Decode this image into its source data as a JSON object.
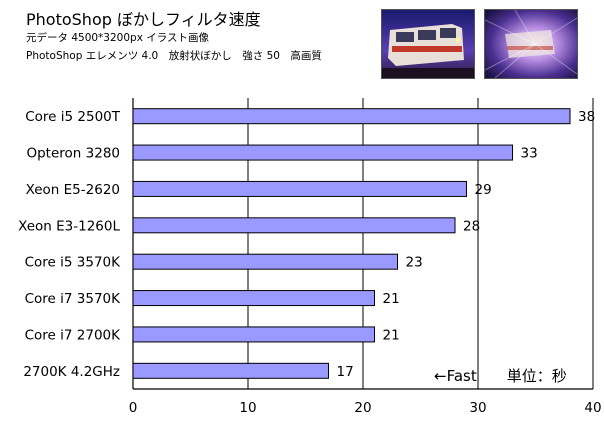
{
  "header": {
    "title": "PhotoShop ぼかしフィルタ速度",
    "subtitle1": "元データ 4500*3200px イラスト画像",
    "subtitle2": "PhotoShop エレメンツ 4.0　放射状ぼかし　強さ 50　高画質"
  },
  "images": [
    {
      "name": "original-train-thumbnail"
    },
    {
      "name": "blurred-train-thumbnail"
    }
  ],
  "colors": {
    "bar_fill": "#9999ff",
    "bar_stroke": "#000000",
    "grid": "#000000"
  },
  "chart_data": {
    "type": "bar",
    "orientation": "horizontal",
    "title": "PhotoShop ぼかしフィルタ速度",
    "categories": [
      "Core i5 2500T",
      "Opteron 3280",
      "Xeon E5-2620",
      "Xeon E3-1260L",
      "Core i5 3570K",
      "Core i7 3570K",
      "Core i7 2700K",
      "2700K 4.2GHz"
    ],
    "values": [
      38,
      33,
      29,
      28,
      23,
      21,
      21,
      17
    ],
    "xlim": [
      0,
      40
    ],
    "xticks": [
      0,
      10,
      20,
      30,
      40
    ],
    "grid": true,
    "annotation": "←Fast　　単位：秒"
  }
}
